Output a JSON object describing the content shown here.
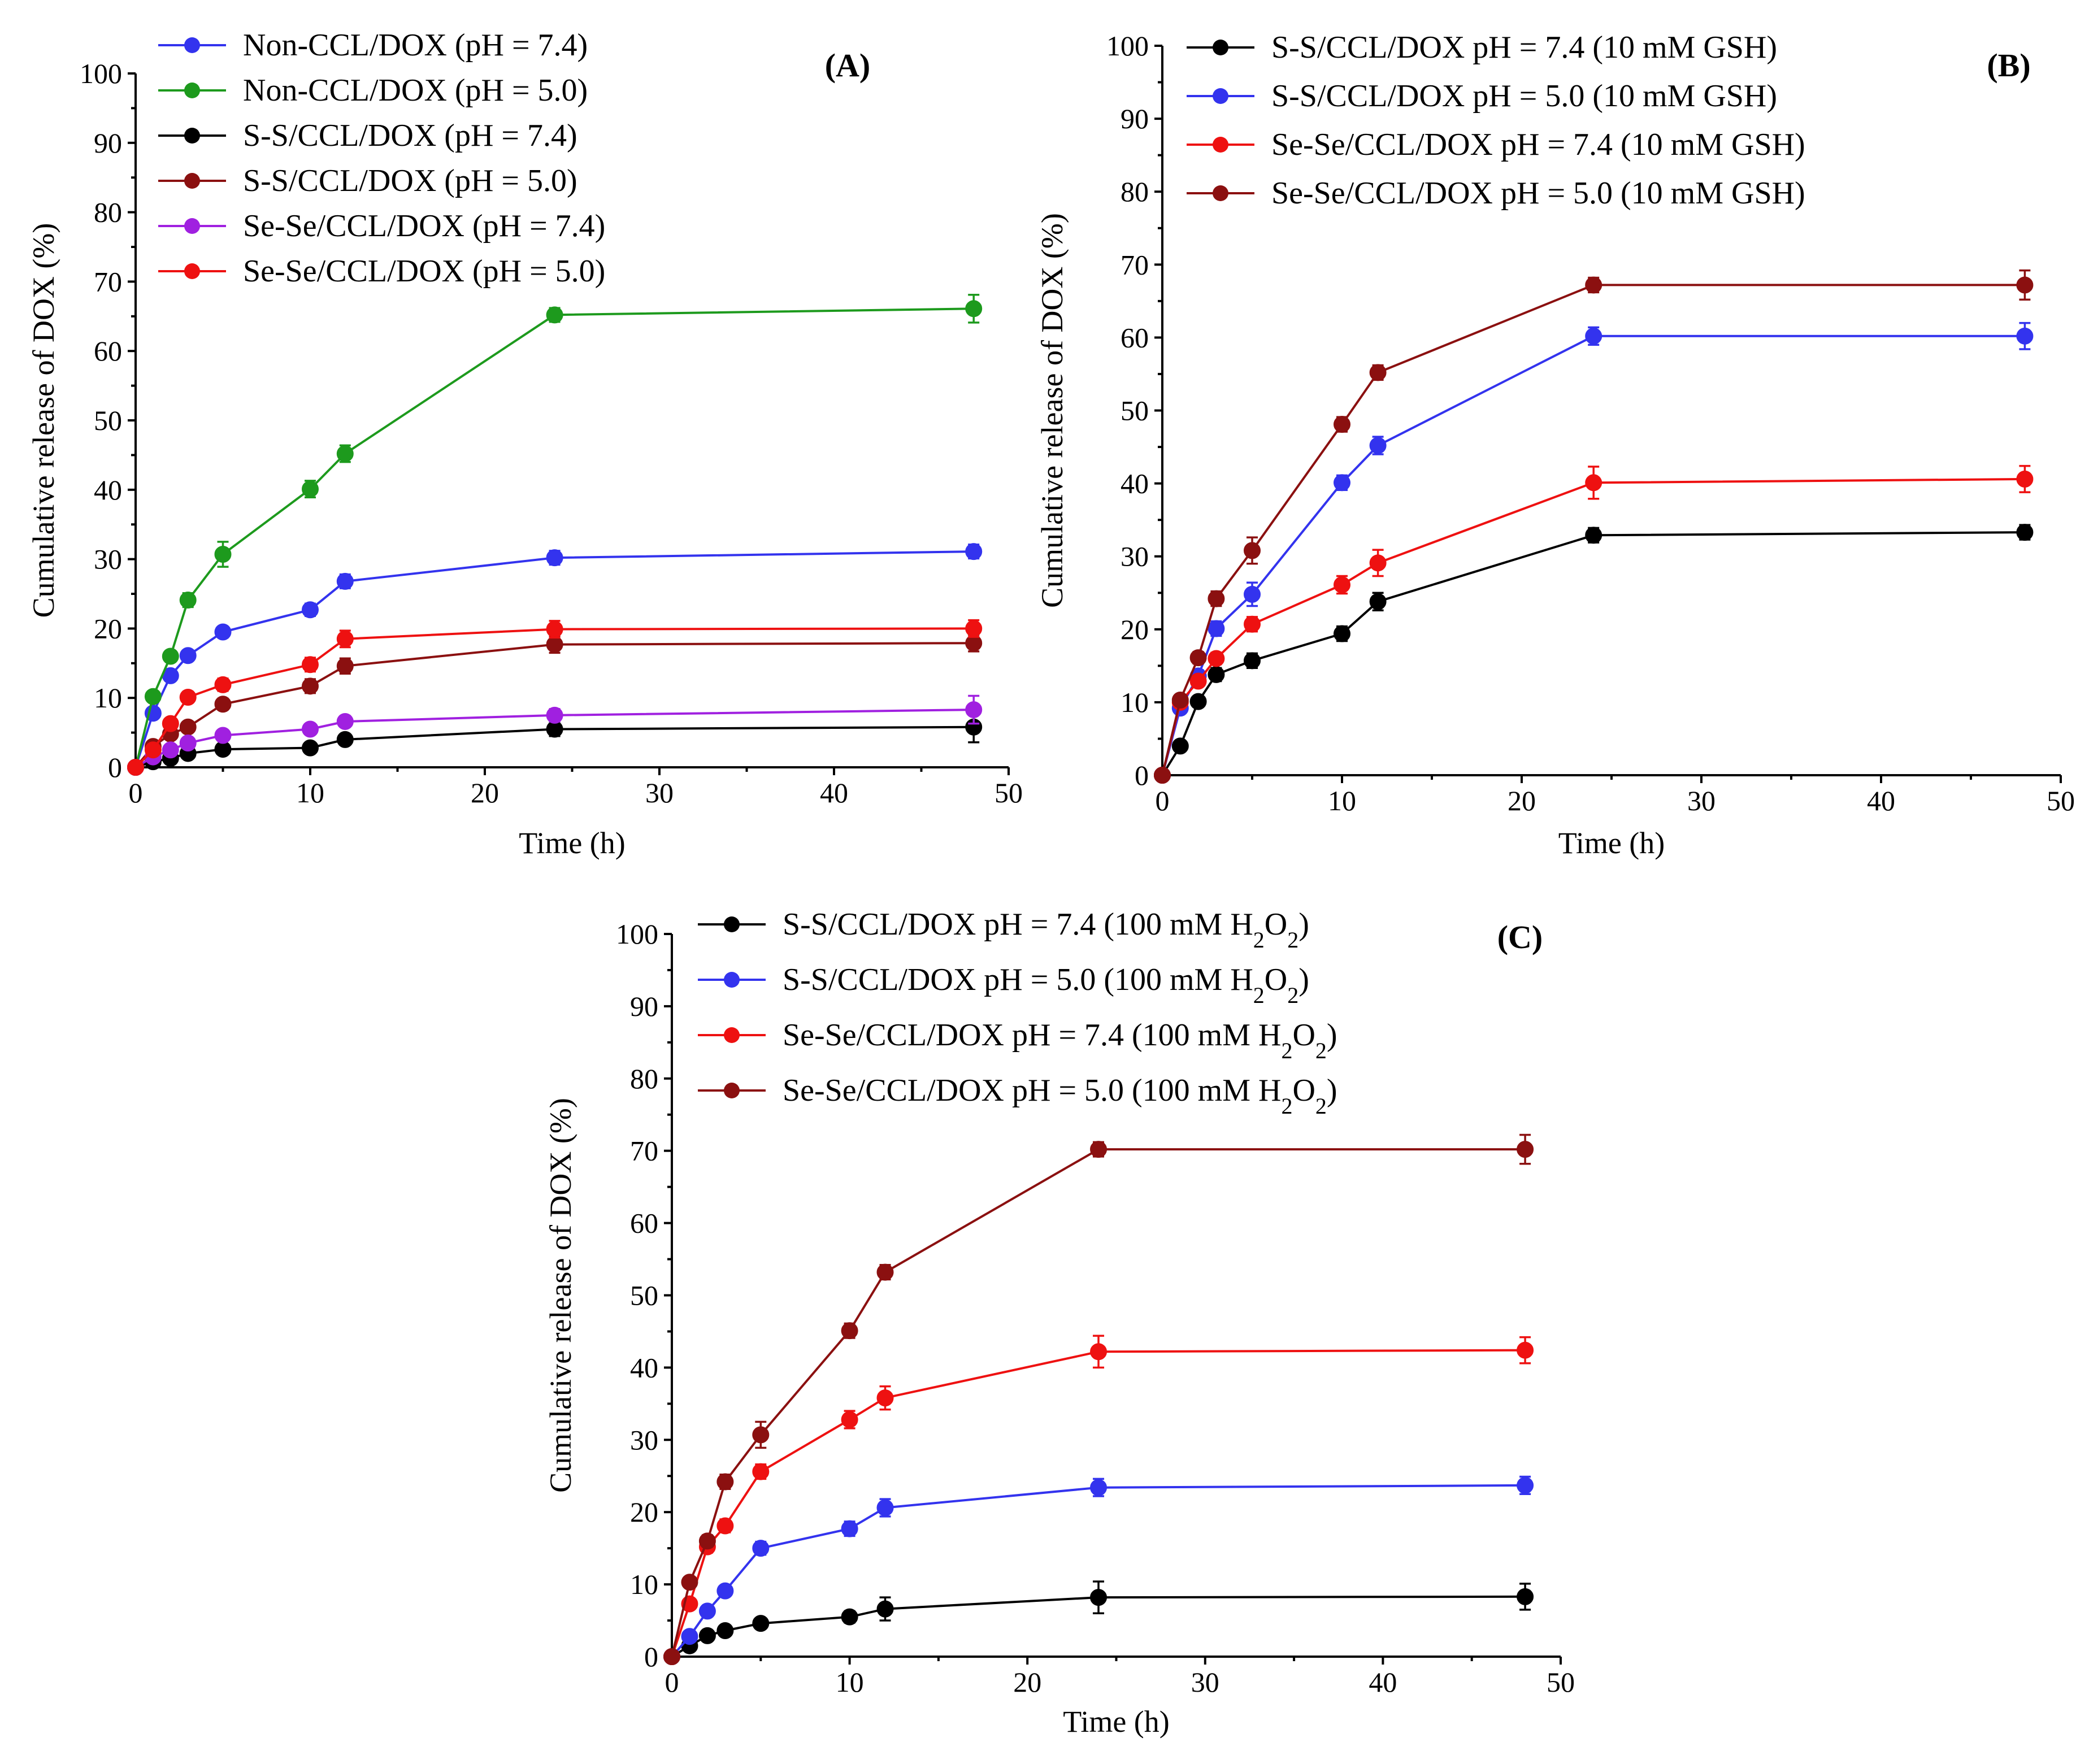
{
  "chart_data": [
    {
      "type": "line",
      "panel_label": "(A)",
      "xlabel": "Time (h)",
      "ylabel": "Cumulative release of DOX (%)",
      "xlim": [
        0,
        50
      ],
      "ylim": [
        0,
        100
      ],
      "xticks": [
        0,
        10,
        20,
        30,
        40,
        50
      ],
      "yticks": [
        0,
        10,
        20,
        30,
        40,
        50,
        60,
        70,
        80,
        90,
        100
      ],
      "legend_position": "top-left",
      "x": [
        0,
        1,
        2,
        3,
        5,
        10,
        12,
        24,
        48
      ],
      "series": [
        {
          "name": "Non-CCL/DOX (pH = 7.4)",
          "color": "#3333ee",
          "values": [
            0,
            7.8,
            13.2,
            16.1,
            19.5,
            22.7,
            26.8,
            30.2,
            31.1
          ],
          "errors": [
            0,
            0.5,
            0.6,
            0.6,
            0.8,
            0.9,
            1.0,
            1.0,
            1.0
          ]
        },
        {
          "name": "Non-CCL/DOX (pH = 5.0)",
          "color": "#1d9a1d",
          "values": [
            0,
            10.2,
            16.0,
            24.1,
            30.7,
            40.1,
            45.2,
            65.2,
            66.1
          ],
          "errors": [
            0,
            0.6,
            0.8,
            1.0,
            1.8,
            1.2,
            1.2,
            1.0,
            2.0
          ]
        },
        {
          "name": "S-S/CCL/DOX (pH = 7.4)",
          "color": "#000000",
          "values": [
            0,
            0.8,
            1.3,
            2.0,
            2.6,
            2.8,
            4.0,
            5.5,
            5.8
          ],
          "errors": [
            0,
            0.3,
            0.3,
            0.4,
            0.5,
            0.5,
            0.6,
            1.0,
            2.2
          ]
        },
        {
          "name": "S-S/CCL/DOX (pH = 5.0)",
          "color": "#8b1010",
          "values": [
            0,
            3.0,
            4.8,
            5.8,
            9.1,
            11.7,
            14.6,
            17.7,
            17.9
          ],
          "errors": [
            0,
            0.4,
            0.5,
            0.6,
            0.8,
            1.0,
            1.1,
            1.2,
            1.2
          ]
        },
        {
          "name": "Se-Se/CCL/DOX (pH = 7.4)",
          "color": "#a020e0",
          "values": [
            0,
            1.5,
            2.5,
            3.5,
            4.6,
            5.5,
            6.6,
            7.5,
            8.3
          ],
          "errors": [
            0,
            0.3,
            0.4,
            0.5,
            0.6,
            0.7,
            0.8,
            0.9,
            2.0
          ]
        },
        {
          "name": "Se-Se/CCL/DOX (pH = 5.0)",
          "color": "#ee1111",
          "values": [
            0,
            2.5,
            6.3,
            10.1,
            11.9,
            14.8,
            18.5,
            19.9,
            20.0
          ],
          "errors": [
            0,
            0.4,
            0.6,
            0.8,
            0.9,
            1.0,
            1.2,
            1.2,
            1.2
          ]
        }
      ]
    },
    {
      "type": "line",
      "panel_label": "(B)",
      "xlabel": "Time (h)",
      "ylabel": "Cumulative release of DOX (%)",
      "xlim": [
        0,
        50
      ],
      "ylim": [
        0,
        100
      ],
      "xticks": [
        0,
        10,
        20,
        30,
        40,
        50
      ],
      "yticks": [
        0,
        10,
        20,
        30,
        40,
        50,
        60,
        70,
        80,
        90,
        100
      ],
      "legend_position": "top-left",
      "x": [
        0,
        1,
        2,
        3,
        5,
        10,
        12,
        24,
        48
      ],
      "series": [
        {
          "name": "S-S/CCL/DOX pH = 7.4 (10 mM GSH)",
          "color": "#000000",
          "values": [
            0,
            4.0,
            10.1,
            13.8,
            15.7,
            19.4,
            23.8,
            32.9,
            33.3
          ],
          "errors": [
            0,
            0.5,
            0.7,
            0.9,
            1.0,
            1.0,
            1.2,
            1.0,
            1.0
          ]
        },
        {
          "name": "S-S/CCL/DOX pH = 5.0 (10 mM GSH)",
          "color": "#3333ee",
          "values": [
            0,
            9.2,
            13.6,
            20.1,
            24.8,
            40.1,
            45.2,
            60.2,
            60.2
          ],
          "errors": [
            0,
            0.6,
            0.8,
            1.0,
            1.6,
            1.0,
            1.2,
            1.2,
            1.8
          ]
        },
        {
          "name": "Se-Se/CCL/DOX pH = 7.4 (10 mM GSH)",
          "color": "#ee1111",
          "values": [
            0,
            10.0,
            12.9,
            16.0,
            20.7,
            26.1,
            29.1,
            40.1,
            40.6
          ],
          "errors": [
            0,
            0.6,
            0.7,
            0.8,
            1.0,
            1.2,
            1.8,
            2.2,
            1.8
          ]
        },
        {
          "name": "Se-Se/CCL/DOX pH = 5.0 (10 mM GSH)",
          "color": "#8b1010",
          "values": [
            0,
            10.3,
            16.1,
            24.2,
            30.8,
            48.1,
            55.2,
            67.2,
            67.2
          ],
          "errors": [
            0,
            0.6,
            0.8,
            1.0,
            1.8,
            1.0,
            1.0,
            1.0,
            2.0
          ]
        }
      ]
    },
    {
      "type": "line",
      "panel_label": "(C)",
      "xlabel": "Time (h)",
      "ylabel": "Cumulative release of DOX (%)",
      "xlim": [
        0,
        50
      ],
      "ylim": [
        0,
        100
      ],
      "xticks": [
        0,
        10,
        20,
        30,
        40,
        50
      ],
      "yticks": [
        0,
        10,
        20,
        30,
        40,
        50,
        60,
        70,
        80,
        90,
        100
      ],
      "legend_position": "top-left",
      "x": [
        0,
        1,
        2,
        3,
        5,
        10,
        12,
        24,
        48
      ],
      "series": [
        {
          "name": "S-S/CCL/DOX pH = 7.4 (100 mM H2O2)",
          "color": "#000000",
          "values": [
            0,
            1.5,
            2.9,
            3.6,
            4.6,
            5.5,
            6.6,
            8.2,
            8.3
          ],
          "errors": [
            0,
            0.4,
            0.5,
            0.5,
            0.6,
            0.8,
            1.6,
            2.2,
            1.8
          ]
        },
        {
          "name": "S-S/CCL/DOX pH = 5.0 (100 mM H2O2)",
          "color": "#3333ee",
          "values": [
            0,
            2.8,
            6.3,
            9.1,
            15.0,
            17.7,
            20.6,
            23.4,
            23.7
          ],
          "errors": [
            0,
            0.4,
            0.6,
            0.7,
            0.9,
            1.0,
            1.2,
            1.2,
            1.2
          ]
        },
        {
          "name": "Se-Se/CCL/DOX pH = 7.4 (100 mM H2O2)",
          "color": "#ee1111",
          "values": [
            0,
            7.3,
            15.2,
            18.1,
            25.6,
            32.8,
            35.8,
            42.2,
            42.4
          ],
          "errors": [
            0,
            0.6,
            0.8,
            0.9,
            1.0,
            1.2,
            1.6,
            2.2,
            1.8
          ]
        },
        {
          "name": "Se-Se/CCL/DOX pH = 5.0 (100 mM H2O2)",
          "color": "#8b1010",
          "values": [
            0,
            10.3,
            16.0,
            24.2,
            30.7,
            45.1,
            53.2,
            70.2,
            70.2
          ],
          "errors": [
            0,
            0.6,
            0.8,
            1.0,
            1.8,
            1.0,
            1.0,
            1.0,
            2.0
          ]
        }
      ]
    }
  ]
}
